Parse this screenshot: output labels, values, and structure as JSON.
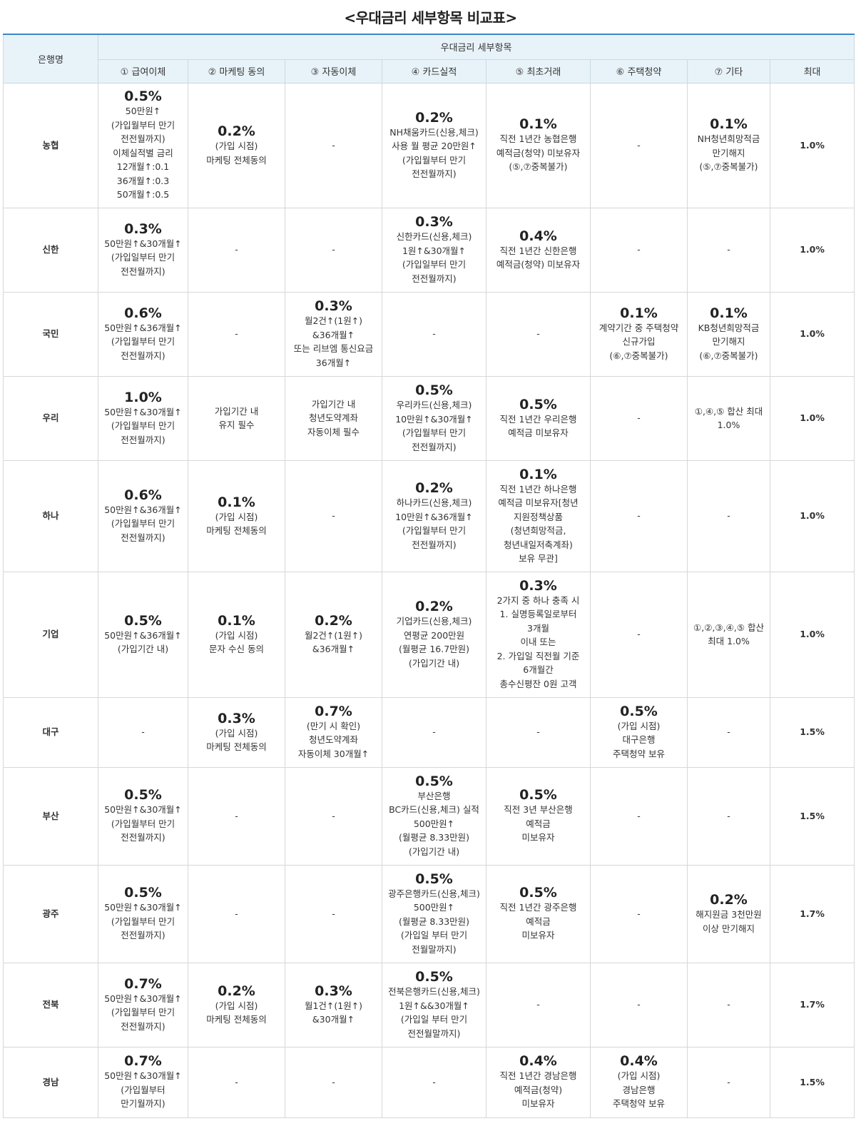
{
  "title": "<우대금리 세부항목 비교표>",
  "header": {
    "bank": "은행명",
    "group": "우대금리 세부항목",
    "columns": [
      "① 급여이체",
      "② 마케팅 동의",
      "③ 자동이체",
      "④ 카드실적",
      "⑤ 최초거래",
      "⑥ 주택청약",
      "⑦ 기타",
      "최대"
    ]
  },
  "rows": [
    {
      "bank": "농협",
      "height": 175,
      "max": "1.0%",
      "cells": [
        {
          "rate": "0.5%",
          "lines": [
            "50만원↑",
            "(가입월부터 만기",
            "전전월까지)",
            "이체실적별 금리",
            "12개월↑:0.1",
            "36개월↑:0.3",
            "50개월↑:0.5"
          ]
        },
        {
          "rate": "0.2%",
          "lines": [
            "(가입 시점)",
            "마케팅 전체동의"
          ]
        },
        {
          "rate": "",
          "lines": [
            "-"
          ]
        },
        {
          "rate": "0.2%",
          "lines": [
            "NH채움카드(신용,체크)",
            "사용 월 평균 20만원↑",
            "(가입월부터 만기",
            "전전월까지)"
          ]
        },
        {
          "rate": "0.1%",
          "lines": [
            "직전 1년간 농협은행",
            "예적금(청약) 미보유자",
            "(⑤,⑦중복불가)"
          ]
        },
        {
          "rate": "",
          "lines": [
            "-"
          ]
        },
        {
          "rate": "0.1%",
          "lines": [
            "NH청년희망적금",
            "만기해지",
            "(⑤,⑦중복불가)"
          ]
        }
      ]
    },
    {
      "bank": "신한",
      "height": 118,
      "max": "1.0%",
      "cells": [
        {
          "rate": "0.3%",
          "lines": [
            "50만원↑&30개월↑",
            "(가입일부터 만기",
            "전전월까지)"
          ]
        },
        {
          "rate": "",
          "lines": [
            "-"
          ]
        },
        {
          "rate": "",
          "lines": [
            "-"
          ]
        },
        {
          "rate": "0.3%",
          "lines": [
            "신한카드(신용,체크)",
            "1원↑&30개월↑",
            "(가입일부터 만기",
            "전전월까지)"
          ]
        },
        {
          "rate": "0.4%",
          "lines": [
            "직전 1년간 신한은행",
            "예적금(청약) 미보유자"
          ]
        },
        {
          "rate": "",
          "lines": [
            "-"
          ]
        },
        {
          "rate": "",
          "lines": [
            "-"
          ]
        }
      ]
    },
    {
      "bank": "국민",
      "height": 118,
      "max": "1.0%",
      "cells": [
        {
          "rate": "0.6%",
          "lines": [
            "50만원↑&36개월↑",
            "(가입월부터 만기",
            "전전월까지)"
          ]
        },
        {
          "rate": "",
          "lines": [
            "-"
          ]
        },
        {
          "rate": "0.3%",
          "lines": [
            "월2건↑(1원↑)",
            "&36개월↑",
            "또는 리브엠 통신요금",
            "36개월↑"
          ]
        },
        {
          "rate": "",
          "lines": [
            "-"
          ]
        },
        {
          "rate": "",
          "lines": [
            "-"
          ]
        },
        {
          "rate": "0.1%",
          "lines": [
            "계약기간 중 주택청약",
            "신규가입",
            "(⑥,⑦중복불가)"
          ]
        },
        {
          "rate": "0.1%",
          "lines": [
            "KB청년희망적금",
            "만기해지",
            "(⑥,⑦중복불가)"
          ]
        }
      ]
    },
    {
      "bank": "우리",
      "height": 118,
      "max": "1.0%",
      "cells": [
        {
          "rate": "1.0%",
          "lines": [
            "50만원↑&30개월↑",
            "(가입월부터 만기",
            "전전월까지)"
          ]
        },
        {
          "rate": "",
          "lines": [
            "가입기간 내",
            "유지 필수"
          ]
        },
        {
          "rate": "",
          "lines": [
            "가입기간 내",
            "청년도약계좌",
            "자동이체 필수"
          ]
        },
        {
          "rate": "0.5%",
          "lines": [
            "우리카드(신용,체크)",
            "10만원↑&30개월↑",
            "(가입월부터 만기",
            "전전월까지)"
          ]
        },
        {
          "rate": "0.5%",
          "lines": [
            "직전 1년간 우리은행",
            "예적금 미보유자"
          ]
        },
        {
          "rate": "",
          "lines": [
            "-"
          ]
        },
        {
          "rate": "",
          "lines": [
            "①,④,⑤ 합산 최대",
            "1.0%"
          ]
        }
      ]
    },
    {
      "bank": "하나",
      "height": 156,
      "max": "1.0%",
      "cells": [
        {
          "rate": "0.6%",
          "lines": [
            "50만원↑&36개월↑",
            "(가입월부터 만기",
            "전전월까지)"
          ]
        },
        {
          "rate": "0.1%",
          "lines": [
            "(가입 시점)",
            "마케팅 전체동의"
          ]
        },
        {
          "rate": "",
          "lines": [
            "-"
          ]
        },
        {
          "rate": "0.2%",
          "lines": [
            "하나카드(신용,체크)",
            "10만원↑&36개월↑",
            "(가입월부터 만기",
            "전전월까지)"
          ]
        },
        {
          "rate": "0.1%",
          "lines": [
            "직전 1년간 하나은행",
            "예적금 미보유자[청년",
            "지원정책상품",
            "(청년희망적금,",
            "청년내일저축계좌)",
            "보유 무관]"
          ]
        },
        {
          "rate": "",
          "lines": [
            "-"
          ]
        },
        {
          "rate": "",
          "lines": [
            "-"
          ]
        }
      ]
    },
    {
      "bank": "기업",
      "height": 176,
      "max": "1.0%",
      "cells": [
        {
          "rate": "0.5%",
          "lines": [
            "50만원↑&36개월↑",
            "(가입기간 내)"
          ]
        },
        {
          "rate": "0.1%",
          "lines": [
            "(가입 시점)",
            "문자 수신 동의"
          ]
        },
        {
          "rate": "0.2%",
          "lines": [
            "월2건↑(1원↑)",
            "&36개월↑"
          ]
        },
        {
          "rate": "0.2%",
          "lines": [
            "기업카드(신용,체크)",
            "연평균 200만원",
            "(월평균 16.7만원)",
            "(가입기간 내)"
          ]
        },
        {
          "rate": "0.3%",
          "lines": [
            "2가지 중 하나 충족 시",
            "1. 실명등록일로부터",
            "3개월",
            "이내 또는",
            "2. 가입일 직전월 기준",
            "6개월간",
            "총수신평잔 0원 고객"
          ]
        },
        {
          "rate": "",
          "lines": [
            "-"
          ]
        },
        {
          "rate": "",
          "lines": [
            "①,②,③,④,⑤ 합산",
            "최대 1.0%"
          ]
        }
      ]
    },
    {
      "bank": "대구",
      "height": 98,
      "max": "1.5%",
      "cells": [
        {
          "rate": "",
          "lines": [
            "-"
          ]
        },
        {
          "rate": "0.3%",
          "lines": [
            "(가입 시점)",
            "마케팅 전체동의"
          ]
        },
        {
          "rate": "0.7%",
          "lines": [
            "(만기 시 확인)",
            "청년도약계좌",
            "자동이체 30개월↑"
          ]
        },
        {
          "rate": "",
          "lines": [
            "-"
          ]
        },
        {
          "rate": "",
          "lines": [
            "-"
          ]
        },
        {
          "rate": "0.5%",
          "lines": [
            "(가입 시점)",
            "대구은행",
            "주택청약 보유"
          ]
        },
        {
          "rate": "",
          "lines": [
            "-"
          ]
        }
      ]
    },
    {
      "bank": "부산",
      "height": 137,
      "max": "1.5%",
      "cells": [
        {
          "rate": "0.5%",
          "lines": [
            "50만원↑&30개월↑",
            "(가입월부터 만기",
            "전전월까지)"
          ]
        },
        {
          "rate": "",
          "lines": [
            "-"
          ]
        },
        {
          "rate": "",
          "lines": [
            "-"
          ]
        },
        {
          "rate": "0.5%",
          "lines": [
            "부산은행",
            "BC카드(신용,체크) 실적",
            "500만원↑",
            "(월평균 8.33만원)",
            "(가입기간 내)"
          ]
        },
        {
          "rate": "0.5%",
          "lines": [
            "직전 3년 부산은행",
            "예적금",
            "미보유자"
          ]
        },
        {
          "rate": "",
          "lines": [
            "-"
          ]
        },
        {
          "rate": "",
          "lines": [
            "-"
          ]
        }
      ]
    },
    {
      "bank": "광주",
      "height": 137,
      "max": "1.7%",
      "cells": [
        {
          "rate": "0.5%",
          "lines": [
            "50만원↑&30개월↑",
            "(가입월부터 만기",
            "전전월까지)"
          ]
        },
        {
          "rate": "",
          "lines": [
            "-"
          ]
        },
        {
          "rate": "",
          "lines": [
            "-"
          ]
        },
        {
          "rate": "0.5%",
          "lines": [
            "광주은행카드(신용,체크)",
            "500만원↑",
            "(월평균 8.33만원)",
            "(가입일 부터 만기",
            "전월말까지)"
          ]
        },
        {
          "rate": "0.5%",
          "lines": [
            "직전 1년간 광주은행",
            "예적금",
            "미보유자"
          ]
        },
        {
          "rate": "",
          "lines": [
            "-"
          ]
        },
        {
          "rate": "0.2%",
          "lines": [
            "해지원금 3천만원",
            "이상 만기해지"
          ]
        }
      ]
    },
    {
      "bank": "전북",
      "height": 118,
      "max": "1.7%",
      "cells": [
        {
          "rate": "0.7%",
          "lines": [
            "50만원↑&30개월↑",
            "(가입월부터 만기",
            "전전월까지)"
          ]
        },
        {
          "rate": "0.2%",
          "lines": [
            "(가입 시점)",
            "마케팅 전체동의"
          ]
        },
        {
          "rate": "0.3%",
          "lines": [
            "월1건↑(1원↑)",
            "&30개월↑"
          ]
        },
        {
          "rate": "0.5%",
          "lines": [
            "전북은행카드(신용,체크)",
            "1원↑&&30개월↑",
            "(가입일 부터 만기",
            "전전월말까지)"
          ]
        },
        {
          "rate": "",
          "lines": [
            "-"
          ]
        },
        {
          "rate": "",
          "lines": [
            "-"
          ]
        },
        {
          "rate": "",
          "lines": [
            "-"
          ]
        }
      ]
    },
    {
      "bank": "경남",
      "height": 99,
      "max": "1.5%",
      "cells": [
        {
          "rate": "0.7%",
          "lines": [
            "50만원↑&30개월↑",
            "(가입월부터",
            "만기월까지)"
          ]
        },
        {
          "rate": "",
          "lines": [
            "-"
          ]
        },
        {
          "rate": "",
          "lines": [
            "-"
          ]
        },
        {
          "rate": "",
          "lines": [
            "-"
          ]
        },
        {
          "rate": "0.4%",
          "lines": [
            "직전 1년간 경남은행",
            "예적금(청약)",
            "미보유자"
          ]
        },
        {
          "rate": "0.4%",
          "lines": [
            "(가입 시점)",
            "경남은행",
            "주택청약 보유"
          ]
        },
        {
          "rate": "",
          "lines": [
            "-"
          ]
        }
      ]
    }
  ]
}
